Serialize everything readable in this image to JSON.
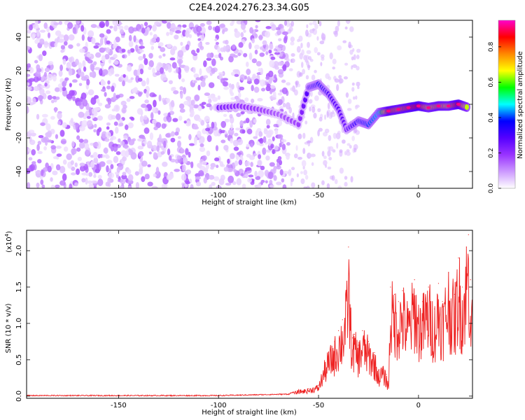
{
  "title": "C2E4.2024.276.23.34.G05",
  "chart_data": [
    {
      "type": "heatmap",
      "xlabel": "Height of straight line (km)",
      "ylabel": "Frequency (Hz)",
      "xlim": [
        -196,
        27
      ],
      "ylim": [
        -50,
        50
      ],
      "xticks": [
        -150,
        -100,
        -50,
        0
      ],
      "yticks": [
        -40,
        -20,
        0,
        20,
        40
      ],
      "colorbar": {
        "label": "Normalized spectral amplitude",
        "range": [
          0,
          0.95
        ],
        "ticks": [
          0.0,
          0.2,
          0.4,
          0.6,
          0.8
        ],
        "colors": [
          "#ffffff",
          "#cc99ff",
          "#9933ff",
          "#5500ff",
          "#0000ff",
          "#00ffff",
          "#00ff00",
          "#ffff00",
          "#ff8800",
          "#ff0000",
          "#ff00cc"
        ]
      },
      "noise_region": {
        "x_range": [
          -196,
          -65
        ],
        "level": "0.05-0.15"
      },
      "signal_trace": [
        {
          "x": -100,
          "y": -2,
          "z": 0.22
        },
        {
          "x": -90,
          "y": -1,
          "z": 0.2
        },
        {
          "x": -80,
          "y": -3,
          "z": 0.18
        },
        {
          "x": -70,
          "y": -6,
          "z": 0.15
        },
        {
          "x": -60,
          "y": -12,
          "z": 0.18
        },
        {
          "x": -55,
          "y": 10,
          "z": 0.3
        },
        {
          "x": -50,
          "y": 12,
          "z": 0.35
        },
        {
          "x": -45,
          "y": 6,
          "z": 0.3
        },
        {
          "x": -40,
          "y": -3,
          "z": 0.28
        },
        {
          "x": -36,
          "y": -15,
          "z": 0.25
        },
        {
          "x": -30,
          "y": -10,
          "z": 0.35
        },
        {
          "x": -25,
          "y": -12,
          "z": 0.4
        },
        {
          "x": -20,
          "y": -5,
          "z": 0.45
        },
        {
          "x": -15,
          "y": -4,
          "z": 0.8
        },
        {
          "x": -10,
          "y": -3,
          "z": 0.75
        },
        {
          "x": -5,
          "y": -2,
          "z": 0.8
        },
        {
          "x": 0,
          "y": -1,
          "z": 0.85
        },
        {
          "x": 5,
          "y": -2,
          "z": 0.7
        },
        {
          "x": 10,
          "y": -1,
          "z": 0.75
        },
        {
          "x": 15,
          "y": -1,
          "z": 0.7
        },
        {
          "x": 20,
          "y": 0,
          "z": 0.85
        },
        {
          "x": 25,
          "y": -2,
          "z": 0.6
        }
      ]
    },
    {
      "type": "line",
      "xlabel": "Height of straight line (km)",
      "ylabel": "SNR (10 * v/v)",
      "y_multiplier": "(x10",
      "y_multiplier_exp": "4",
      "xlim": [
        -196,
        27
      ],
      "ylim": [
        -0.03,
        2.28
      ],
      "xticks": [
        -150,
        -100,
        -50,
        0
      ],
      "yticks": [
        0.0,
        0.5,
        1.0,
        1.5,
        2.0
      ],
      "color": "#ee2222",
      "series": [
        {
          "x": [
            -196,
            -150,
            -100,
            -65,
            -60,
            -55,
            -50,
            -47,
            -45,
            -42,
            -40,
            -38,
            -36,
            -35,
            -34,
            -33,
            -32,
            -30,
            -28,
            -25,
            -22,
            -20,
            -18,
            -16,
            -15,
            -14,
            -12,
            -10,
            -8,
            -5,
            -2,
            0,
            2,
            5,
            8,
            10,
            12,
            15,
            18,
            20,
            22,
            24,
            25,
            26,
            27
          ],
          "y": [
            0.0,
            0.0,
            0.0,
            0.02,
            0.08,
            0.1,
            0.15,
            0.45,
            0.6,
            0.75,
            0.9,
            1.05,
            1.4,
            2.05,
            1.2,
            0.8,
            0.85,
            0.7,
            0.9,
            0.75,
            0.6,
            0.35,
            0.4,
            0.3,
            0.15,
            1.5,
            1.4,
            1.3,
            1.45,
            1.2,
            1.6,
            1.25,
            1.3,
            1.5,
            1.2,
            1.55,
            1.3,
            1.7,
            1.4,
            1.9,
            1.5,
            2.05,
            2.22,
            1.6,
            1.2
          ]
        }
      ]
    }
  ]
}
